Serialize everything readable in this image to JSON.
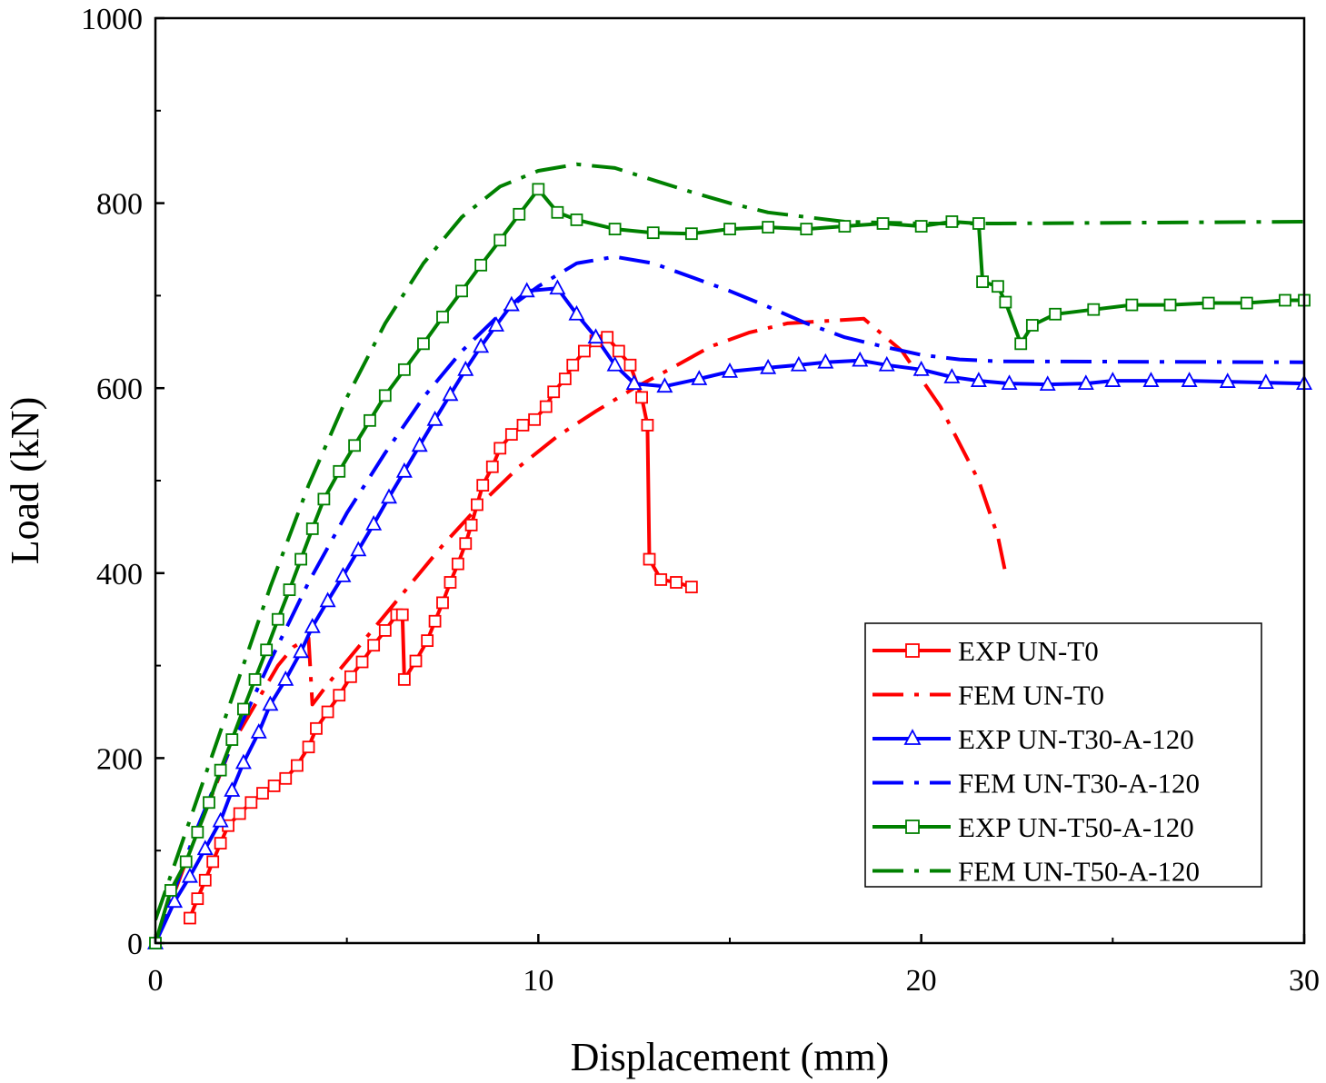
{
  "chart_data": {
    "type": "line",
    "title": "",
    "xlabel": "Displacement (mm)",
    "ylabel": "Load (kN)",
    "xlim": [
      0,
      30
    ],
    "ylim": [
      0,
      1000
    ],
    "xticks": [
      0,
      10,
      20,
      30
    ],
    "yticks": [
      0,
      200,
      400,
      600,
      800,
      1000
    ],
    "grid": false,
    "legend_position": "bottom-right",
    "series": [
      {
        "name": "EXP UN-T0",
        "color": "#ff0000",
        "style": "solid",
        "marker": "square",
        "points": [
          [
            0.9,
            27
          ],
          [
            1.1,
            48
          ],
          [
            1.3,
            68
          ],
          [
            1.5,
            88
          ],
          [
            1.7,
            108
          ],
          [
            1.9,
            127
          ],
          [
            2.2,
            140
          ],
          [
            2.5,
            152
          ],
          [
            2.8,
            162
          ],
          [
            3.1,
            170
          ],
          [
            3.4,
            178
          ],
          [
            3.7,
            192
          ],
          [
            4.0,
            212
          ],
          [
            4.2,
            232
          ],
          [
            4.5,
            250
          ],
          [
            4.8,
            268
          ],
          [
            5.1,
            288
          ],
          [
            5.4,
            304
          ],
          [
            5.7,
            322
          ],
          [
            6.0,
            338
          ],
          [
            6.3,
            355
          ],
          [
            6.45,
            355
          ],
          [
            6.5,
            285
          ],
          [
            6.8,
            305
          ],
          [
            7.1,
            327
          ],
          [
            7.3,
            348
          ],
          [
            7.5,
            368
          ],
          [
            7.7,
            390
          ],
          [
            7.9,
            410
          ],
          [
            8.1,
            432
          ],
          [
            8.25,
            452
          ],
          [
            8.4,
            474
          ],
          [
            8.55,
            495
          ],
          [
            8.8,
            515
          ],
          [
            9.0,
            535
          ],
          [
            9.3,
            550
          ],
          [
            9.6,
            560
          ],
          [
            9.9,
            566
          ],
          [
            10.2,
            580
          ],
          [
            10.4,
            596
          ],
          [
            10.7,
            610
          ],
          [
            10.9,
            625
          ],
          [
            11.2,
            640
          ],
          [
            11.5,
            651
          ],
          [
            11.8,
            655
          ],
          [
            12.1,
            640
          ],
          [
            12.4,
            625
          ],
          [
            12.7,
            590
          ],
          [
            12.85,
            560
          ],
          [
            12.9,
            415
          ],
          [
            13.2,
            393
          ],
          [
            13.6,
            390
          ],
          [
            14.0,
            385
          ]
        ]
      },
      {
        "name": "FEM UN-T0",
        "color": "#ff0000",
        "style": "dash-dot",
        "marker": "none",
        "points": [
          [
            0,
            0
          ],
          [
            1,
            110
          ],
          [
            2,
            215
          ],
          [
            3.2,
            300
          ],
          [
            3.6,
            320
          ],
          [
            4.0,
            330
          ],
          [
            4.1,
            258
          ],
          [
            4.5,
            280
          ],
          [
            5.5,
            330
          ],
          [
            6.5,
            380
          ],
          [
            7.5,
            430
          ],
          [
            8.5,
            475
          ],
          [
            9.5,
            515
          ],
          [
            10.5,
            548
          ],
          [
            11.5,
            575
          ],
          [
            12.5,
            600
          ],
          [
            13.5,
            622
          ],
          [
            14.5,
            645
          ],
          [
            15.5,
            660
          ],
          [
            16.5,
            670
          ],
          [
            18.5,
            675
          ],
          [
            19.5,
            640
          ],
          [
            20.5,
            580
          ],
          [
            21.5,
            500
          ],
          [
            22.0,
            440
          ],
          [
            22.2,
            400
          ]
        ]
      },
      {
        "name": "EXP UN-T30-A-120",
        "color": "#0000ff",
        "style": "solid",
        "marker": "triangle",
        "points": [
          [
            0,
            0
          ],
          [
            0.5,
            45
          ],
          [
            0.9,
            72
          ],
          [
            1.3,
            102
          ],
          [
            1.7,
            132
          ],
          [
            2.0,
            165
          ],
          [
            2.3,
            195
          ],
          [
            2.7,
            228
          ],
          [
            3.0,
            258
          ],
          [
            3.4,
            285
          ],
          [
            3.8,
            315
          ],
          [
            4.1,
            342
          ],
          [
            4.5,
            370
          ],
          [
            4.9,
            397
          ],
          [
            5.3,
            425
          ],
          [
            5.7,
            453
          ],
          [
            6.1,
            482
          ],
          [
            6.5,
            510
          ],
          [
            6.9,
            538
          ],
          [
            7.3,
            566
          ],
          [
            7.7,
            593
          ],
          [
            8.1,
            620
          ],
          [
            8.5,
            645
          ],
          [
            8.9,
            668
          ],
          [
            9.3,
            690
          ],
          [
            9.7,
            705
          ],
          [
            10.5,
            708
          ],
          [
            11.0,
            680
          ],
          [
            11.5,
            655
          ],
          [
            12.0,
            625
          ],
          [
            12.5,
            605
          ],
          [
            13.3,
            602
          ],
          [
            14.2,
            610
          ],
          [
            15.0,
            618
          ],
          [
            16.0,
            622
          ],
          [
            16.8,
            625
          ],
          [
            17.5,
            628
          ],
          [
            18.4,
            630
          ],
          [
            19.1,
            625
          ],
          [
            20.0,
            620
          ],
          [
            20.8,
            612
          ],
          [
            21.5,
            608
          ],
          [
            22.3,
            605
          ],
          [
            23.3,
            604
          ],
          [
            24.3,
            605
          ],
          [
            25.0,
            608
          ],
          [
            26.0,
            608
          ],
          [
            27.0,
            608
          ],
          [
            28.0,
            607
          ],
          [
            29.0,
            606
          ],
          [
            30.0,
            605
          ]
        ]
      },
      {
        "name": "FEM UN-T30-A-120",
        "color": "#0000ff",
        "style": "dash-dot",
        "marker": "none",
        "points": [
          [
            0,
            0
          ],
          [
            1,
            115
          ],
          [
            2,
            215
          ],
          [
            3,
            305
          ],
          [
            4,
            390
          ],
          [
            5,
            465
          ],
          [
            6,
            530
          ],
          [
            7,
            590
          ],
          [
            8,
            640
          ],
          [
            9,
            680
          ],
          [
            10,
            710
          ],
          [
            11,
            735
          ],
          [
            12,
            742
          ],
          [
            13,
            735
          ],
          [
            14,
            720
          ],
          [
            15,
            705
          ],
          [
            16,
            688
          ],
          [
            17,
            670
          ],
          [
            18,
            655
          ],
          [
            19,
            645
          ],
          [
            20,
            636
          ],
          [
            21,
            631
          ],
          [
            22,
            629
          ],
          [
            30,
            628
          ]
        ]
      },
      {
        "name": "EXP UN-T50-A-120",
        "color": "#008000",
        "style": "solid",
        "marker": "square",
        "points": [
          [
            0,
            0
          ],
          [
            0.4,
            57
          ],
          [
            0.8,
            88
          ],
          [
            1.1,
            120
          ],
          [
            1.4,
            152
          ],
          [
            1.7,
            187
          ],
          [
            2.0,
            220
          ],
          [
            2.3,
            253
          ],
          [
            2.6,
            285
          ],
          [
            2.9,
            317
          ],
          [
            3.2,
            350
          ],
          [
            3.5,
            382
          ],
          [
            3.8,
            415
          ],
          [
            4.1,
            448
          ],
          [
            4.4,
            480
          ],
          [
            4.8,
            510
          ],
          [
            5.2,
            538
          ],
          [
            5.6,
            565
          ],
          [
            6.0,
            592
          ],
          [
            6.5,
            620
          ],
          [
            7.0,
            648
          ],
          [
            7.5,
            677
          ],
          [
            8.0,
            705
          ],
          [
            8.5,
            733
          ],
          [
            9.0,
            760
          ],
          [
            9.5,
            788
          ],
          [
            10.0,
            815
          ],
          [
            10.5,
            790
          ],
          [
            11.0,
            782
          ],
          [
            12.0,
            772
          ],
          [
            13.0,
            768
          ],
          [
            14.0,
            767
          ],
          [
            15.0,
            772
          ],
          [
            16.0,
            774
          ],
          [
            17.0,
            772
          ],
          [
            18.0,
            775
          ],
          [
            19.0,
            778
          ],
          [
            20.0,
            775
          ],
          [
            20.8,
            780
          ],
          [
            21.5,
            778
          ],
          [
            21.6,
            715
          ],
          [
            22.0,
            710
          ],
          [
            22.2,
            693
          ],
          [
            22.6,
            648
          ],
          [
            22.9,
            668
          ],
          [
            23.5,
            680
          ],
          [
            24.5,
            685
          ],
          [
            25.5,
            690
          ],
          [
            26.5,
            690
          ],
          [
            27.5,
            692
          ],
          [
            28.5,
            692
          ],
          [
            29.5,
            695
          ],
          [
            30.0,
            695
          ]
        ]
      },
      {
        "name": "FEM UN-T50-A-120",
        "color": "#008000",
        "style": "dash-dot",
        "marker": "none",
        "points": [
          [
            0,
            25
          ],
          [
            1,
            145
          ],
          [
            2,
            265
          ],
          [
            3,
            385
          ],
          [
            4,
            495
          ],
          [
            5,
            590
          ],
          [
            6,
            670
          ],
          [
            7,
            735
          ],
          [
            8,
            785
          ],
          [
            9,
            818
          ],
          [
            10,
            835
          ],
          [
            11,
            842
          ],
          [
            12,
            838
          ],
          [
            13,
            825
          ],
          [
            14,
            812
          ],
          [
            15,
            800
          ],
          [
            16,
            790
          ],
          [
            17,
            785
          ],
          [
            18,
            780
          ],
          [
            19,
            779
          ],
          [
            20,
            778
          ],
          [
            22,
            778
          ],
          [
            26,
            779
          ],
          [
            30,
            780
          ]
        ]
      }
    ]
  }
}
